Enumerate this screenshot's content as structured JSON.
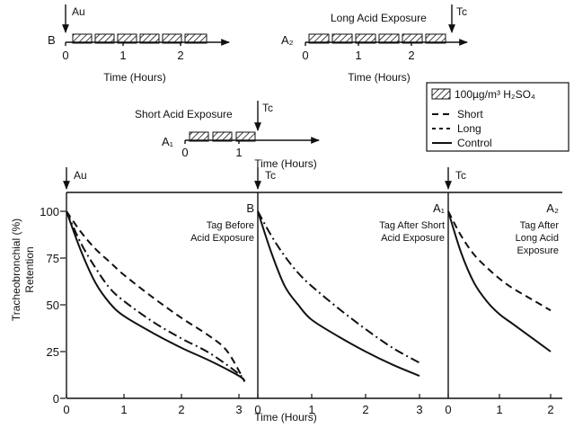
{
  "legend": {
    "acid_label": "100µg/m³ H₂SO₄",
    "short_label": "Short",
    "long_label": "Long",
    "control_label": "Control"
  },
  "timelines": {
    "time_label": "Time (Hours)",
    "B": {
      "panel": "B",
      "marker": "Au",
      "ticks": [
        "0",
        "1",
        "2"
      ]
    },
    "A2": {
      "panel": "A₂",
      "title": "Long Acid Exposure",
      "marker": "Tc",
      "ticks": [
        "0",
        "1",
        "2"
      ]
    },
    "A1": {
      "panel": "A₁",
      "title": "Short Acid Exposure",
      "marker": "Tc",
      "ticks": [
        "0",
        "1"
      ]
    }
  },
  "main": {
    "ylabel_line1": "Tracheobronchial (%)",
    "ylabel_line2": "Retention",
    "xlabel": "Time (Hours)",
    "y_ticks": [
      "0",
      "25",
      "50",
      "75",
      "100"
    ]
  },
  "chart_data": [
    {
      "type": "line",
      "panel": "B",
      "marker": "Au",
      "annotation": [
        "Tag Before",
        "Acid Exposure"
      ],
      "xlim": [
        0,
        3.2
      ],
      "ylim": [
        0,
        100
      ],
      "x_ticks": [
        "0",
        "1",
        "2",
        "3"
      ],
      "series": [
        {
          "name": "Control",
          "style": "solid",
          "x": [
            0,
            0.25,
            0.5,
            0.75,
            1,
            1.5,
            2,
            2.5,
            3,
            3.1
          ],
          "y": [
            100,
            79,
            62,
            51,
            44,
            35,
            27,
            20,
            12,
            9
          ]
        },
        {
          "name": "Short",
          "style": "dash-dot",
          "x": [
            0,
            0.25,
            0.5,
            0.75,
            1,
            1.5,
            2,
            2.5,
            3,
            3.1
          ],
          "y": [
            100,
            83,
            70,
            59,
            52,
            41,
            32,
            24,
            13,
            9
          ]
        },
        {
          "name": "Long",
          "style": "dashed",
          "x": [
            0,
            0.25,
            0.5,
            0.75,
            1,
            1.5,
            2,
            2.5,
            2.8,
            3.1
          ],
          "y": [
            100,
            89,
            80,
            73,
            66,
            54,
            43,
            33,
            25,
            9
          ]
        }
      ]
    },
    {
      "type": "line",
      "panel": "A₁",
      "marker": "Tc",
      "annotation": [
        "Tag After Short",
        "Acid Exposure"
      ],
      "xlim": [
        0,
        3.2
      ],
      "ylim": [
        0,
        100
      ],
      "x_ticks": [
        "0",
        "1",
        "2",
        "3"
      ],
      "series": [
        {
          "name": "Control",
          "style": "solid",
          "x": [
            0,
            0.25,
            0.5,
            0.75,
            1,
            1.5,
            2,
            2.5,
            3
          ],
          "y": [
            100,
            78,
            60,
            50,
            42,
            33,
            25,
            18,
            12
          ]
        },
        {
          "name": "Short",
          "style": "dash-dot",
          "x": [
            0,
            0.25,
            0.5,
            0.75,
            1,
            1.5,
            2,
            2.5,
            3
          ],
          "y": [
            100,
            87,
            76,
            67,
            60,
            48,
            37,
            27,
            19
          ]
        }
      ]
    },
    {
      "type": "line",
      "panel": "A₂",
      "marker": "Tc",
      "annotation": [
        "Tag After",
        "Long Acid",
        "Exposure"
      ],
      "xlim": [
        0,
        2.2
      ],
      "ylim": [
        0,
        100
      ],
      "x_ticks": [
        "0",
        "1",
        "2"
      ],
      "series": [
        {
          "name": "Control",
          "style": "solid",
          "x": [
            0,
            0.25,
            0.5,
            0.75,
            1,
            1.25,
            1.5,
            1.75,
            2
          ],
          "y": [
            100,
            78,
            62,
            52,
            45,
            40,
            35,
            30,
            25
          ]
        },
        {
          "name": "Long",
          "style": "dashed",
          "x": [
            0,
            0.25,
            0.5,
            0.75,
            1,
            1.25,
            1.5,
            1.75,
            2
          ],
          "y": [
            100,
            87,
            77,
            70,
            64,
            59,
            55,
            51,
            47
          ]
        }
      ]
    }
  ]
}
